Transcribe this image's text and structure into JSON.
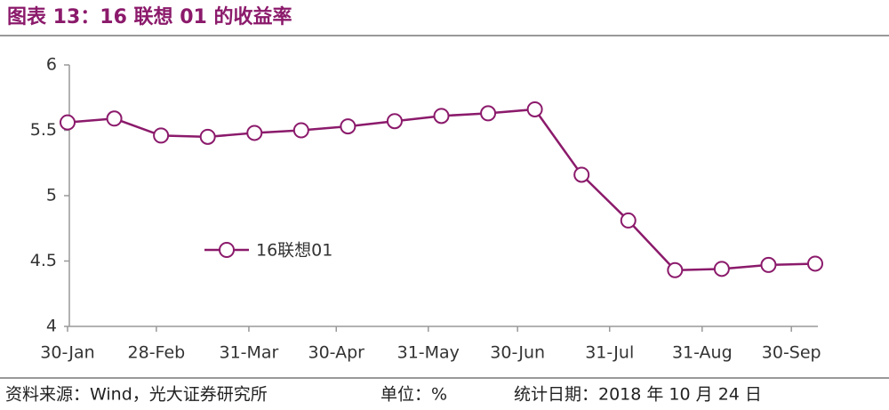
{
  "chart_data": {
    "type": "line",
    "title": "图表 13：16 联想 01 的收益率",
    "x": [
      0,
      1,
      2,
      3,
      4,
      5,
      6,
      7,
      8,
      9,
      10,
      11,
      12,
      13,
      14,
      15,
      16
    ],
    "xlim": [
      0,
      16
    ],
    "xticks": [
      {
        "value": 0,
        "label": "30-Jan"
      },
      {
        "value": 1.9,
        "label": "28-Feb"
      },
      {
        "value": 3.88,
        "label": "31-Mar"
      },
      {
        "value": 5.75,
        "label": "30-Apr"
      },
      {
        "value": 7.72,
        "label": "31-May"
      },
      {
        "value": 9.63,
        "label": "30-Jun"
      },
      {
        "value": 11.6,
        "label": "31-Jul"
      },
      {
        "value": 13.58,
        "label": "31-Aug"
      },
      {
        "value": 15.49,
        "label": "30-Sep"
      }
    ],
    "ylim": [
      4,
      6
    ],
    "yticks": [
      4,
      4.5,
      5,
      5.5,
      6
    ],
    "series": [
      {
        "name": "16联想01",
        "color": "#8b1a6b",
        "values": [
          5.56,
          5.59,
          5.46,
          5.45,
          5.48,
          5.5,
          5.53,
          5.57,
          5.61,
          5.63,
          5.66,
          5.16,
          4.81,
          4.43,
          4.44,
          4.47,
          4.48
        ]
      }
    ],
    "legend": "left",
    "source": "资料来源：Wind，光大证券研究所",
    "unit": "单位：%",
    "date": "统计日期：2018 年 10 月 24 日"
  }
}
